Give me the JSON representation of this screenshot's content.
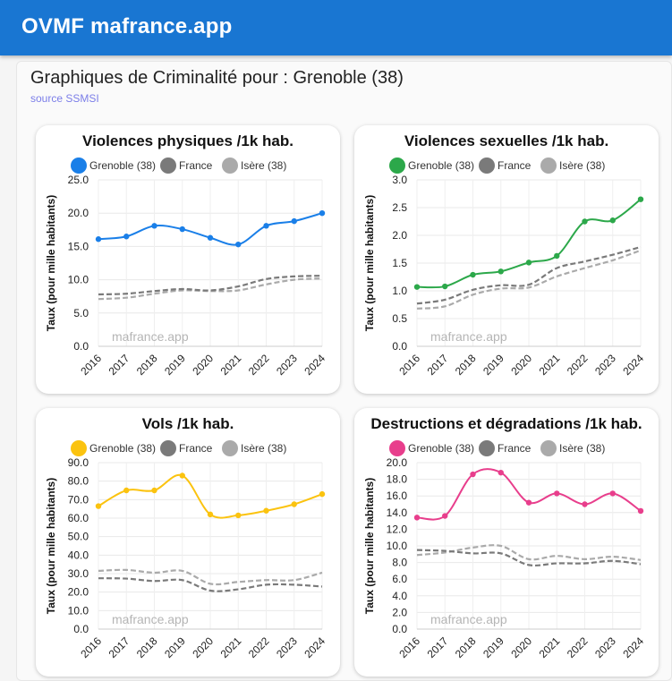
{
  "app": {
    "title": "OVMF mafrance.app"
  },
  "page": {
    "title": "Graphiques de Criminalité pour : Grenoble (38)",
    "source": "source SSMSI"
  },
  "colors": {
    "header": "#1976d2",
    "france": "#7a7a7a",
    "isere": "#aaaaaa"
  },
  "watermark": "mafrance.app",
  "chart_data": [
    {
      "type": "line",
      "title": "Violences physiques /1k hab.",
      "ylabel": "Taux (pour mille habitants)",
      "categories": [
        "2016",
        "2017",
        "2018",
        "2019",
        "2020",
        "2021",
        "2022",
        "2023",
        "2024"
      ],
      "ylim": [
        0,
        25
      ],
      "yticks": [
        "25.0",
        "20.0",
        "15.0",
        "10.0",
        "5.0",
        "0.0"
      ],
      "series": [
        {
          "name": "Grenoble (38)",
          "color": "#1a7fe8",
          "values": [
            16.1,
            16.5,
            18.1,
            17.6,
            16.3,
            15.3,
            18.1,
            18.8,
            20.0
          ]
        },
        {
          "name": "France",
          "color": "#7a7a7a",
          "values": [
            7.8,
            7.9,
            8.3,
            8.6,
            8.4,
            9.0,
            10.1,
            10.5,
            10.6
          ]
        },
        {
          "name": "Isère (38)",
          "color": "#aaaaaa",
          "values": [
            7.1,
            7.3,
            7.9,
            8.4,
            8.3,
            8.4,
            9.3,
            10.0,
            10.2
          ]
        }
      ]
    },
    {
      "type": "line",
      "title": "Violences sexuelles /1k hab.",
      "ylabel": "Taux (pour mille habitants)",
      "categories": [
        "2016",
        "2017",
        "2018",
        "2019",
        "2020",
        "2021",
        "2022",
        "2023",
        "2024"
      ],
      "ylim": [
        0,
        3
      ],
      "yticks": [
        "3.0",
        "2.5",
        "2.0",
        "1.5",
        "1.0",
        "0.5",
        "0.0"
      ],
      "series": [
        {
          "name": "Grenoble (38)",
          "color": "#2ca84a",
          "values": [
            1.07,
            1.08,
            1.29,
            1.35,
            1.51,
            1.63,
            2.25,
            2.27,
            2.65
          ]
        },
        {
          "name": "France",
          "color": "#7a7a7a",
          "values": [
            0.77,
            0.84,
            1.02,
            1.1,
            1.11,
            1.41,
            1.53,
            1.65,
            1.79
          ]
        },
        {
          "name": "Isère (38)",
          "color": "#aaaaaa",
          "values": [
            0.68,
            0.72,
            0.93,
            1.04,
            1.06,
            1.26,
            1.41,
            1.55,
            1.73
          ]
        }
      ]
    },
    {
      "type": "line",
      "title": "Vols /1k hab.",
      "ylabel": "Taux (pour mille habitants)",
      "categories": [
        "2016",
        "2017",
        "2018",
        "2019",
        "2020",
        "2021",
        "2022",
        "2023",
        "2024"
      ],
      "ylim": [
        0,
        90
      ],
      "yticks": [
        "90.0",
        "80.0",
        "70.0",
        "60.0",
        "50.0",
        "40.0",
        "30.0",
        "20.0",
        "10.0",
        "0.0"
      ],
      "series": [
        {
          "name": "Grenoble (38)",
          "color": "#fbc30f",
          "values": [
            66.5,
            75.0,
            75.0,
            83.0,
            62.0,
            61.5,
            64.0,
            67.5,
            73.0
          ]
        },
        {
          "name": "France",
          "color": "#7a7a7a",
          "values": [
            27.5,
            27.3,
            26.0,
            26.5,
            20.8,
            21.5,
            24.0,
            24.0,
            23.0
          ]
        },
        {
          "name": "Isère (38)",
          "color": "#aaaaaa",
          "values": [
            31.5,
            32.0,
            30.5,
            31.5,
            24.5,
            25.5,
            26.5,
            26.5,
            30.5
          ]
        }
      ]
    },
    {
      "type": "line",
      "title": "Destructions et dégradations /1k hab.",
      "ylabel": "Taux (pour mille habitants)",
      "categories": [
        "2016",
        "2017",
        "2018",
        "2019",
        "2020",
        "2021",
        "2022",
        "2023",
        "2024"
      ],
      "ylim": [
        0,
        20
      ],
      "yticks": [
        "20.0",
        "18.0",
        "16.0",
        "14.0",
        "12.0",
        "10.0",
        "8.0",
        "6.0",
        "4.0",
        "2.0",
        "0.0"
      ],
      "series": [
        {
          "name": "Grenoble (38)",
          "color": "#e83e8c",
          "values": [
            13.4,
            13.6,
            18.6,
            18.8,
            15.2,
            16.3,
            15.0,
            16.3,
            14.2
          ]
        },
        {
          "name": "France",
          "color": "#7a7a7a",
          "values": [
            9.5,
            9.4,
            9.1,
            9.1,
            7.7,
            7.9,
            7.9,
            8.2,
            7.8
          ]
        },
        {
          "name": "Isère (38)",
          "color": "#aaaaaa",
          "values": [
            8.9,
            9.2,
            9.8,
            10.0,
            8.4,
            8.8,
            8.4,
            8.7,
            8.3
          ]
        }
      ]
    }
  ]
}
